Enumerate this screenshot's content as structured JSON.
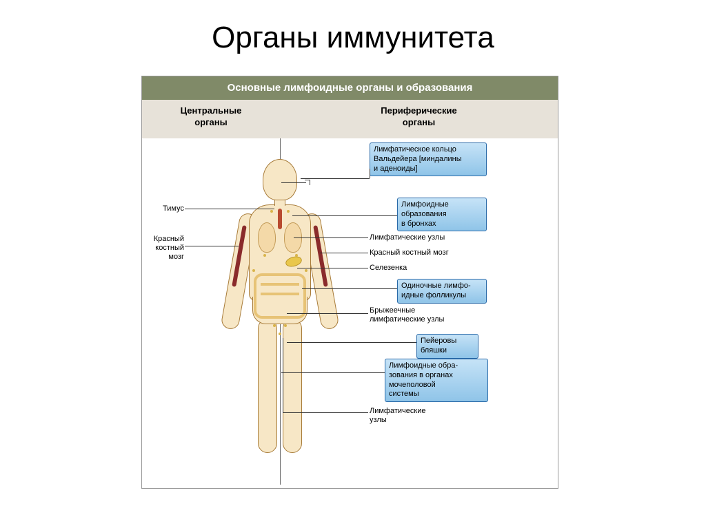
{
  "title": "Органы иммунитета",
  "diagram": {
    "banner": "Основные лимфоидные органы и образования",
    "banner_bg": "#808a68",
    "header_bg": "#e7e2d9",
    "header_left": "Центральные\nорганы",
    "header_right": "Периферические\nорганы",
    "skin_fill": "#f7e7c6",
    "skin_stroke": "#a87c3a",
    "box_bg_top": "#c6e3f7",
    "box_bg_bottom": "#8fc4e8",
    "box_border": "#2a6aa8",
    "left_labels": {
      "thymus": "Тимус",
      "marrow": "Красный\nкостный\nмозг"
    },
    "right_boxes": {
      "waldeyer": "Лимфатическое кольцо\nВальдейера [миндалины\nи аденоиды]",
      "bronchi": "Лимфоидные\nобразования\nв бронхах",
      "follicles": "Одиночные лимфо-\nидные фолликулы",
      "peyer": "Пейеровы\nбляшки",
      "urogenital": "Лимфоидные обра-\nзования в органах\nмочеполовой\nсистемы"
    },
    "right_plain": {
      "lymph_nodes": "Лимфатические узлы",
      "marrow2": "Красный костный мозг",
      "spleen": "Селезенка",
      "mesenteric": "Брыжеечные\nлимфатические узлы",
      "lymph_nodes2": "Лимфатические\nузлы"
    }
  }
}
